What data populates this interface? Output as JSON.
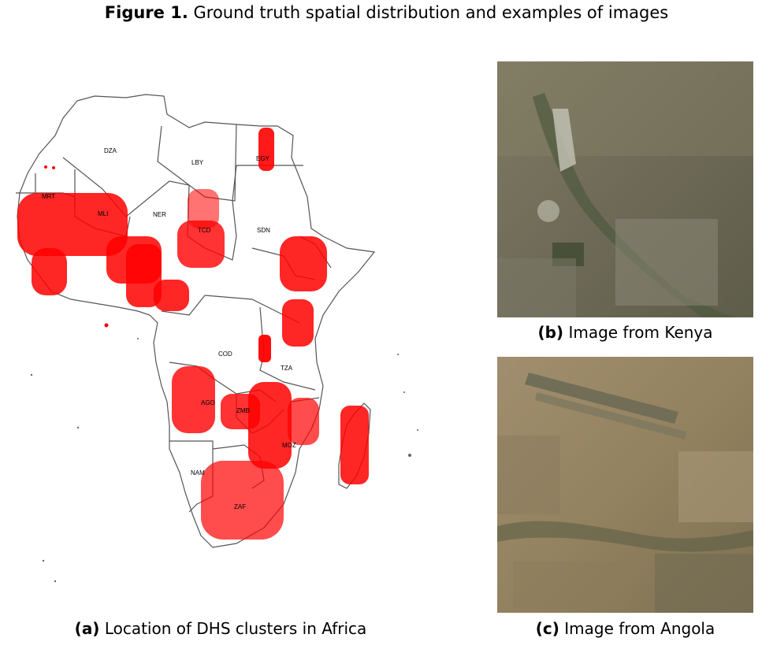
{
  "figure": {
    "label": "Figure 1.",
    "title": "Ground truth spatial distribution and examples of images"
  },
  "map": {
    "country_codes": [
      "DZA",
      "LBY",
      "EGY",
      "MRT",
      "MLI",
      "NER",
      "TCD",
      "SDN",
      "COD",
      "TZA",
      "AGO",
      "ZMB",
      "MOZ",
      "NAM",
      "ZAF"
    ],
    "point_color": "#ff0000"
  },
  "panels": [
    {
      "id": "a",
      "label": "(a)",
      "caption": "Location of DHS clusters in Africa"
    },
    {
      "id": "b",
      "label": "(b)",
      "caption": "Image from Kenya"
    },
    {
      "id": "c",
      "label": "(c)",
      "caption": "Image from Angola"
    }
  ]
}
